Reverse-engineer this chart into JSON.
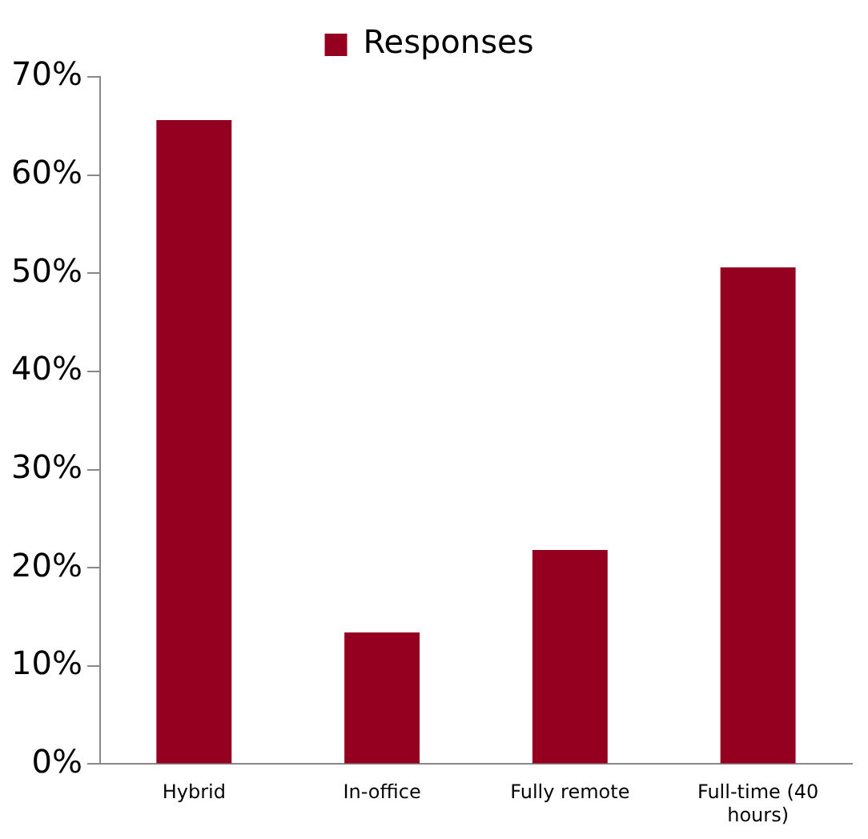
{
  "chart_data": {
    "type": "bar",
    "categories": [
      "Hybrid",
      "In-office",
      "Fully remote",
      "Full-time (40 hours)"
    ],
    "series": [
      {
        "name": "Responses",
        "color": "#960020",
        "values": [
          65.6,
          13.4,
          21.8,
          50.6
        ]
      }
    ],
    "ylim": [
      0,
      70
    ],
    "yticks": [
      {
        "value": 0,
        "label": "0%"
      },
      {
        "value": 10,
        "label": "10%"
      },
      {
        "value": 20,
        "label": "20%"
      },
      {
        "value": 30,
        "label": "30%"
      },
      {
        "value": 40,
        "label": "40%"
      },
      {
        "value": 50,
        "label": "50%"
      },
      {
        "value": 60,
        "label": "60%"
      },
      {
        "value": 70,
        "label": "70%"
      }
    ],
    "grid": false,
    "legend": "top"
  }
}
